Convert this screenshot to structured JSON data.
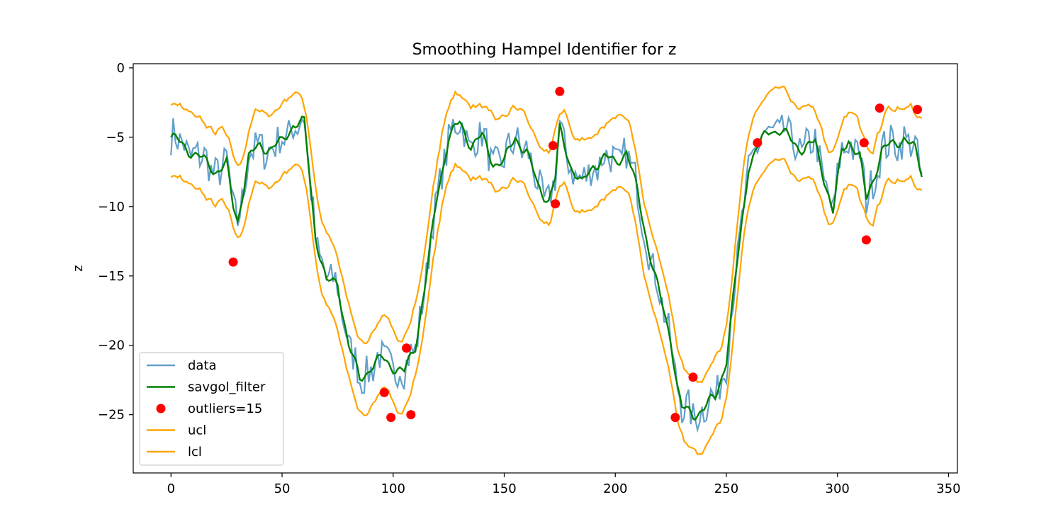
{
  "chart_data": {
    "type": "line",
    "title": "Smoothing Hampel Identifier for z",
    "xlabel": "",
    "ylabel": "z",
    "xlim": [
      -17,
      354
    ],
    "ylim": [
      -29.2,
      0.3
    ],
    "xticks": [
      0,
      50,
      100,
      150,
      200,
      250,
      300,
      350
    ],
    "yticks": [
      0,
      -5,
      -10,
      -15,
      -20,
      -25
    ],
    "grid": false,
    "legend_position": "lower-left",
    "colors": {
      "data": "#1f77b4",
      "savgol_filter": "#008000",
      "outliers": "#ff0000",
      "ucl": "#ffa500",
      "lcl": "#ffa500"
    },
    "legend": [
      "data",
      "savgol_filter",
      "outliers=15",
      "ucl",
      "lcl"
    ],
    "x_range": [
      0,
      338
    ],
    "keypoints": [
      [
        0,
        -5.0
      ],
      [
        10,
        -6.1
      ],
      [
        20,
        -7.4
      ],
      [
        25,
        -7.0
      ],
      [
        28,
        -10.0
      ],
      [
        30,
        -11.0
      ],
      [
        35,
        -6.5
      ],
      [
        40,
        -5.6
      ],
      [
        45,
        -5.8
      ],
      [
        50,
        -5.4
      ],
      [
        55,
        -4.0
      ],
      [
        60,
        -4.0
      ],
      [
        65,
        -12.0
      ],
      [
        70,
        -15.5
      ],
      [
        75,
        -15.5
      ],
      [
        80,
        -20.0
      ],
      [
        85,
        -22.5
      ],
      [
        90,
        -21.5
      ],
      [
        95,
        -21.0
      ],
      [
        100,
        -21.5
      ],
      [
        105,
        -22.0
      ],
      [
        110,
        -20.0
      ],
      [
        115,
        -15.0
      ],
      [
        120,
        -9.0
      ],
      [
        125,
        -5.0
      ],
      [
        130,
        -4.0
      ],
      [
        135,
        -5.5
      ],
      [
        140,
        -5.0
      ],
      [
        145,
        -6.8
      ],
      [
        150,
        -6.8
      ],
      [
        155,
        -5.0
      ],
      [
        160,
        -6.0
      ],
      [
        165,
        -8.5
      ],
      [
        170,
        -9.5
      ],
      [
        173,
        -8.0
      ],
      [
        175,
        -4.5
      ],
      [
        180,
        -7.0
      ],
      [
        185,
        -8.5
      ],
      [
        190,
        -7.0
      ],
      [
        195,
        -6.5
      ],
      [
        200,
        -6.8
      ],
      [
        205,
        -6.0
      ],
      [
        210,
        -9.0
      ],
      [
        215,
        -13.0
      ],
      [
        220,
        -16.5
      ],
      [
        225,
        -19.5
      ],
      [
        228,
        -23.0
      ],
      [
        230,
        -24.6
      ],
      [
        235,
        -25.0
      ],
      [
        240,
        -24.5
      ],
      [
        245,
        -23.8
      ],
      [
        250,
        -21.0
      ],
      [
        255,
        -14.0
      ],
      [
        260,
        -7.0
      ],
      [
        265,
        -5.5
      ],
      [
        270,
        -4.3
      ],
      [
        275,
        -4.7
      ],
      [
        280,
        -5.3
      ],
      [
        285,
        -5.9
      ],
      [
        290,
        -5.4
      ],
      [
        295,
        -8.5
      ],
      [
        298,
        -10.5
      ],
      [
        302,
        -6.0
      ],
      [
        305,
        -5.1
      ],
      [
        310,
        -6.5
      ],
      [
        313,
        -9.5
      ],
      [
        316,
        -8.0
      ],
      [
        320,
        -6.0
      ],
      [
        325,
        -5.5
      ],
      [
        330,
        -5.0
      ],
      [
        335,
        -6.0
      ],
      [
        338,
        -7.6
      ]
    ],
    "series": [
      {
        "name": "data"
      },
      {
        "name": "savgol_filter"
      },
      {
        "name": "ucl"
      },
      {
        "name": "lcl"
      }
    ],
    "outliers": {
      "name": "outliers=15",
      "x": [
        28,
        96,
        99,
        106,
        108,
        172,
        173,
        175,
        227,
        235,
        264,
        312,
        313,
        319,
        336
      ],
      "y": [
        -14.0,
        -23.4,
        -25.2,
        -20.2,
        -25.0,
        -5.6,
        -9.8,
        -1.7,
        -25.2,
        -22.3,
        -5.4,
        -5.4,
        -12.4,
        -2.9,
        -3.0
      ]
    }
  }
}
